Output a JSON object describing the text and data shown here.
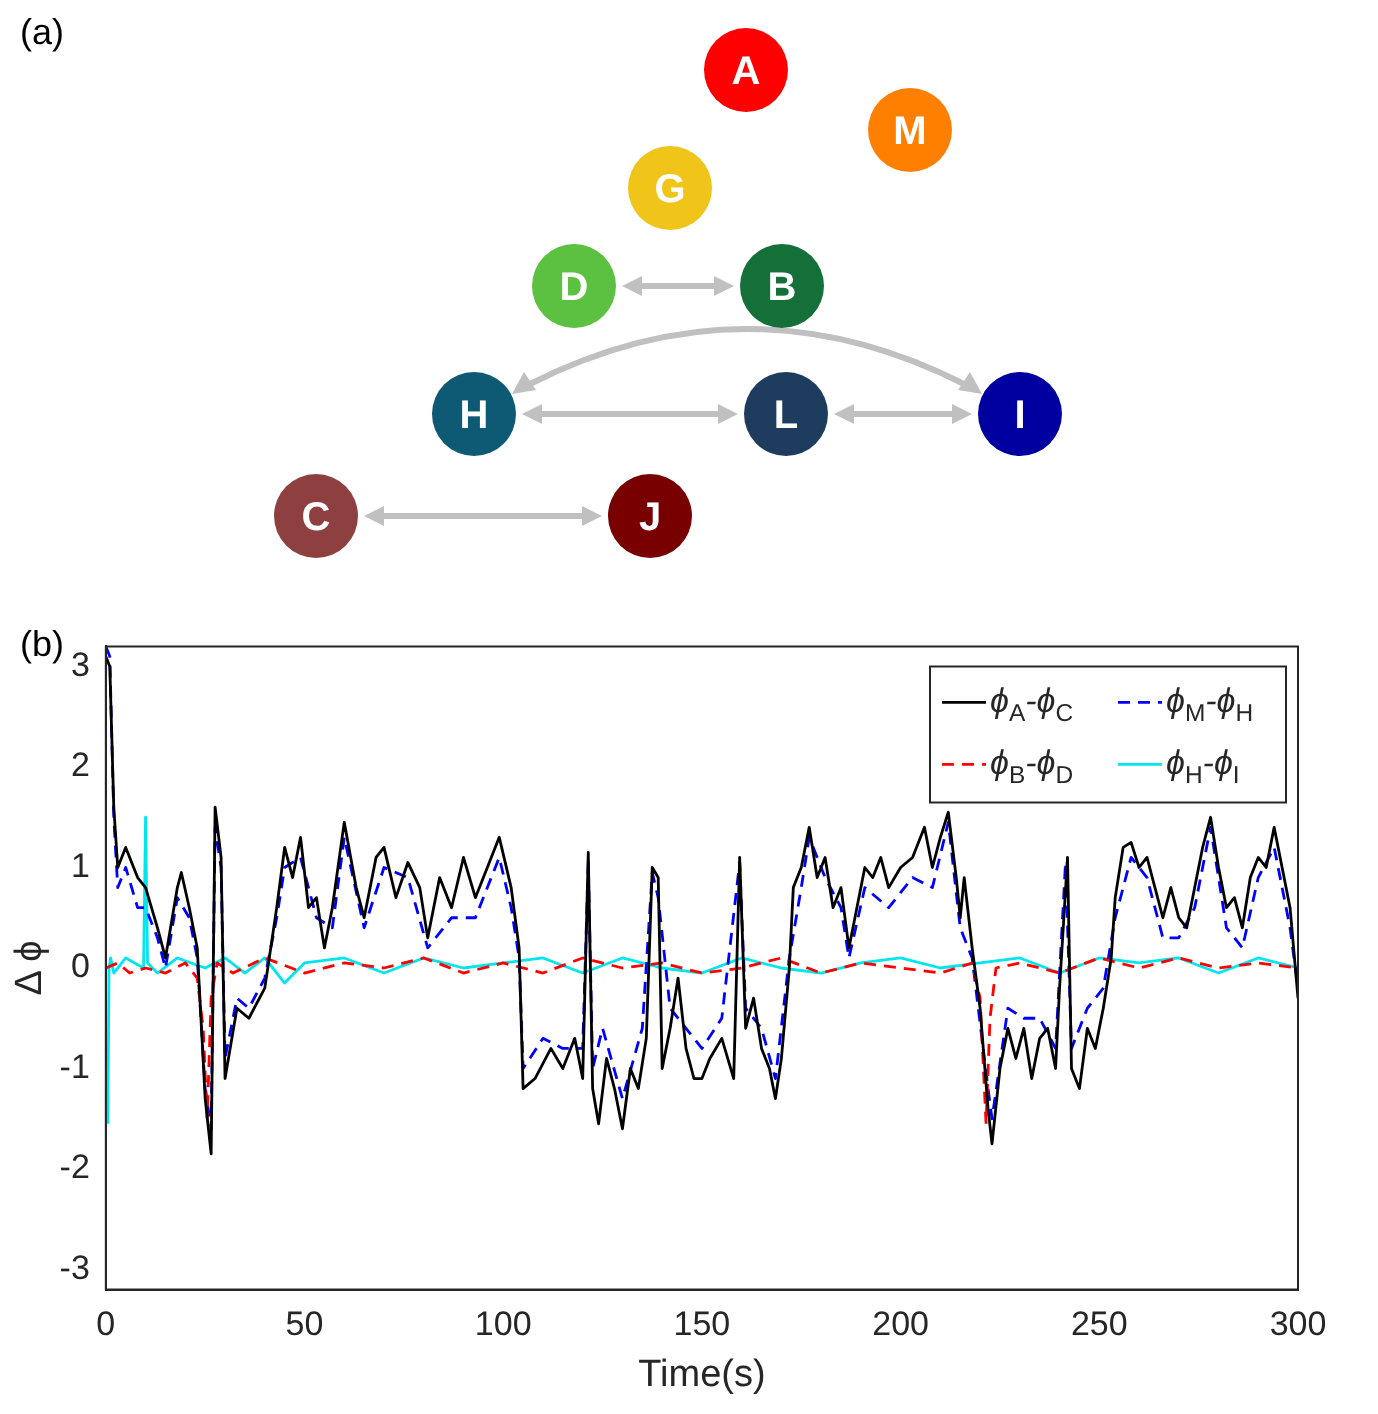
{
  "chart_data": [
    {
      "type": "other",
      "annotations": [
        "(a)"
      ],
      "categories": [
        "A",
        "M",
        "G",
        "D",
        "B",
        "H",
        "L",
        "I",
        "C",
        "J"
      ],
      "colors": [
        "#ff0000",
        "#ff8000",
        "#f0c418",
        "#5cc040",
        "#147038",
        "#0e5a74",
        "#1e3c5e",
        "#0000a0",
        "#8e4040",
        "#780000"
      ]
    },
    {
      "type": "line",
      "annotations": [
        "(b)"
      ],
      "xlabel": "Time(s)",
      "ylabel": "Δ ϕ",
      "xlim": [
        0,
        300
      ],
      "xticks": [
        0,
        50,
        100,
        150,
        200,
        250,
        300
      ],
      "ylim": [
        -3.2,
        3.2
      ],
      "yticks": [
        -3,
        -2,
        -1,
        0,
        1,
        2,
        3
      ],
      "grid": false,
      "legend": "top right",
      "marker": "none",
      "series": [
        {
          "name": "ϕ$_{A}$-ϕ$_{C}$",
          "color": "#000000",
          "line_style": "solid",
          "x": [
            0,
            1,
            2,
            3,
            5,
            8,
            10,
            13,
            15,
            18,
            19,
            21,
            23,
            25,
            26.5,
            27.5,
            29,
            30,
            33,
            36,
            40,
            43,
            45,
            47,
            49,
            51,
            53,
            55,
            57,
            60,
            63,
            65,
            68,
            70,
            73,
            76,
            79,
            81,
            84,
            87,
            90,
            93,
            96,
            99,
            102,
            104,
            105,
            108,
            112,
            115,
            118,
            120,
            121.4,
            122.5,
            124,
            126,
            128,
            130,
            132,
            134,
            136,
            137.5,
            139,
            140,
            142,
            144,
            146,
            148,
            150,
            152,
            155,
            158,
            159.5,
            161,
            163,
            165,
            167,
            168.5,
            170,
            172,
            173,
            175,
            177,
            179,
            181,
            183,
            185,
            187,
            189,
            191,
            193,
            195,
            197,
            200,
            203,
            206,
            208,
            210,
            212,
            214,
            215,
            216,
            218,
            220,
            221,
            222,
            223,
            225,
            227,
            229,
            231,
            233,
            235,
            237,
            239,
            240,
            242,
            243,
            245,
            247,
            249,
            251,
            253,
            254,
            256,
            258,
            260,
            262,
            264,
            266,
            268,
            270,
            272,
            274,
            276,
            278,
            280,
            282,
            284,
            286,
            288,
            290,
            292,
            294,
            296,
            298,
            300
          ],
          "values": [
            3.1,
            3.0,
            1.6,
            1.0,
            1.2,
            0.9,
            0.8,
            0.4,
            0.1,
            0.8,
            0.95,
            0.6,
            0.2,
            -1.3,
            -1.85,
            1.6,
            1.1,
            -1.1,
            -0.4,
            -0.5,
            -0.2,
            0.6,
            1.2,
            0.9,
            1.3,
            0.6,
            0.7,
            0.2,
            0.6,
            1.45,
            0.8,
            0.5,
            1.1,
            1.2,
            0.7,
            1.05,
            0.8,
            0.3,
            0.9,
            0.6,
            1.1,
            0.7,
            1.0,
            1.3,
            0.8,
            0.2,
            -1.2,
            -1.1,
            -0.8,
            -1.0,
            -0.7,
            -1.1,
            1.15,
            -1.2,
            -1.55,
            -0.9,
            -1.2,
            -1.6,
            -1.0,
            -1.2,
            -0.7,
            1.0,
            0.9,
            -1.0,
            -0.6,
            -0.1,
            -0.8,
            -1.1,
            -1.1,
            -0.9,
            -0.7,
            -1.1,
            1.1,
            -0.6,
            -0.3,
            -0.8,
            -1.0,
            -1.3,
            -0.9,
            0,
            0.8,
            1.0,
            1.4,
            0.9,
            1.1,
            0.6,
            0.8,
            0.2,
            0.6,
            1.0,
            0.9,
            1.1,
            0.8,
            1.0,
            1.1,
            1.4,
            1.0,
            1.3,
            1.55,
            0.9,
            0.5,
            0.9,
            0.2,
            -0.4,
            -0.9,
            -1.4,
            -1.75,
            -1.0,
            -0.6,
            -0.9,
            -0.6,
            -1.1,
            -0.7,
            -0.6,
            -1.0,
            -0.2,
            1.1,
            -1.0,
            -1.2,
            -0.6,
            -0.8,
            -0.4,
            0.1,
            0.7,
            1.2,
            1.25,
            1.0,
            1.1,
            0.8,
            0.5,
            0.8,
            0.5,
            0.4,
            0.8,
            1.2,
            1.5,
            1.0,
            0.6,
            0.7,
            0.4,
            0.9,
            1.1,
            1.0,
            1.4,
            1.0,
            0.6,
            -0.3
          ]
        },
        {
          "name": "ϕ$_{B}$-ϕ$_{D}$",
          "color": "#ff0000",
          "line_style": "dashed",
          "x": [
            0,
            3,
            6,
            10,
            15,
            20,
            23,
            24.5,
            25.5,
            26.5,
            28,
            32,
            40,
            50,
            60,
            70,
            80,
            90,
            100,
            110,
            120,
            130,
            140,
            150,
            160,
            170,
            180,
            190,
            200,
            210,
            218,
            220,
            221.5,
            222.5,
            224,
            230,
            240,
            250,
            260,
            270,
            280,
            290,
            300
          ],
          "values": [
            0,
            0.05,
            -0.05,
            0,
            -0.05,
            0.05,
            -0.1,
            -0.6,
            -1.5,
            -0.3,
            0.05,
            -0.05,
            0.1,
            -0.05,
            0.05,
            0,
            0.1,
            -0.05,
            0.05,
            -0.05,
            0.1,
            0,
            0.05,
            -0.05,
            0,
            0.1,
            -0.05,
            0.05,
            0,
            -0.05,
            0.05,
            -0.3,
            -1.55,
            -0.5,
            0.0,
            0.05,
            -0.05,
            0.1,
            0,
            0.1,
            0,
            0.05,
            0
          ]
        },
        {
          "name": "ϕ$_{M}$-ϕ$_{H}$",
          "color": "#0000ff",
          "line_style": "dashed",
          "x": [
            0,
            1,
            2,
            3,
            5,
            8,
            10,
            13,
            15,
            18,
            21,
            23,
            25,
            26.5,
            27.5,
            29,
            30,
            33,
            36,
            40,
            43,
            45,
            49,
            53,
            57,
            60,
            65,
            70,
            76,
            81,
            87,
            93,
            99,
            102,
            104,
            105,
            110,
            115,
            120,
            121.4,
            122.5,
            125,
            130,
            135,
            137.5,
            139,
            142,
            146,
            150,
            155,
            159.5,
            161,
            165,
            168.5,
            172,
            175,
            177,
            181,
            185,
            187,
            191,
            197,
            203,
            208,
            212,
            215,
            218,
            222,
            223,
            227,
            231,
            235,
            239,
            241.5,
            243,
            247,
            251,
            254,
            258,
            262,
            266,
            270,
            274,
            278,
            282,
            286,
            290,
            294,
            298,
            300
          ],
          "values": [
            3.2,
            3.1,
            1.5,
            0.8,
            1.0,
            0.6,
            0.6,
            0.3,
            0.0,
            0.7,
            0.5,
            0.1,
            -1.2,
            -1.6,
            1.4,
            1.0,
            -0.9,
            -0.3,
            -0.4,
            -0.1,
            0.5,
            1.0,
            1.1,
            0.5,
            0.4,
            1.3,
            0.4,
            1.0,
            0.9,
            0.2,
            0.5,
            0.5,
            1.1,
            0.6,
            0.1,
            -1.0,
            -0.7,
            -0.8,
            -0.8,
            1.05,
            -1.0,
            -0.6,
            -1.3,
            -0.6,
            0.95,
            0.7,
            -0.4,
            -0.6,
            -0.8,
            -0.5,
            1.05,
            -0.4,
            -0.6,
            -1.1,
            0.1,
            0.8,
            1.3,
            0.9,
            0.6,
            0.1,
            0.8,
            0.6,
            0.9,
            0.8,
            1.45,
            0.4,
            0.1,
            -1.2,
            -1.5,
            -0.4,
            -0.5,
            -0.5,
            -0.8,
            1.05,
            -0.8,
            -0.4,
            -0.2,
            0.5,
            1.1,
            0.9,
            0.3,
            0.3,
            0.6,
            1.4,
            0.4,
            0.2,
            0.9,
            1.2,
            0.4,
            -0.2
          ]
        },
        {
          "name": "ϕ$_{H}$-ϕ$_{I}$",
          "color": "#00e5ee",
          "line_style": "solid",
          "x": [
            0.5,
            0.8,
            1.2,
            2,
            5,
            9.5,
            10,
            10.5,
            13,
            18,
            25,
            30,
            35,
            40,
            45,
            50,
            60,
            70,
            80,
            90,
            100,
            110,
            120,
            130,
            140,
            150,
            160,
            170,
            180,
            190,
            200,
            210,
            220,
            230,
            240,
            250,
            260,
            270,
            280,
            290,
            300
          ],
          "values": [
            -1.55,
            0,
            0.1,
            -0.05,
            0.1,
            0,
            1.5,
            0.05,
            -0.05,
            0.1,
            0,
            0.1,
            -0.05,
            0.1,
            -0.15,
            0.05,
            0.1,
            -0.05,
            0.1,
            0,
            0.05,
            0.1,
            -0.05,
            0.1,
            0,
            -0.05,
            0.1,
            0,
            -0.05,
            0.05,
            0.1,
            0,
            0.05,
            0.1,
            -0.05,
            0.1,
            0.05,
            0.1,
            -0.05,
            0.1,
            0
          ]
        }
      ]
    }
  ]
}
